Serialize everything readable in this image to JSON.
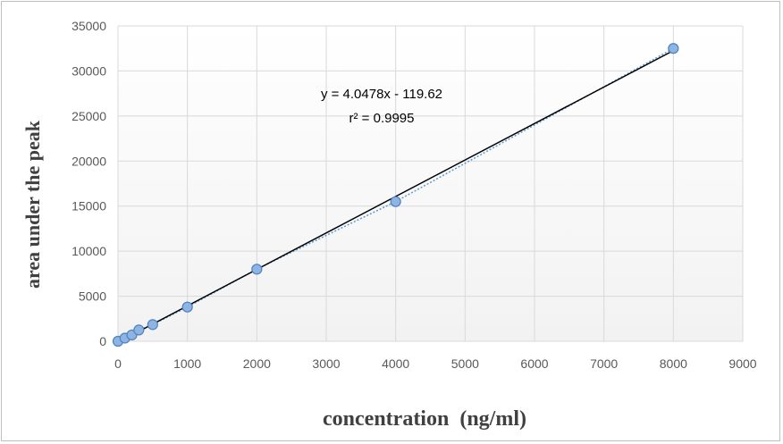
{
  "chart_data": {
    "type": "scatter",
    "title": "",
    "xlabel": "concentration  (ng/ml)",
    "ylabel": "area under the peak",
    "xlim": [
      0,
      9000
    ],
    "ylim": [
      0,
      35000
    ],
    "xticks": [
      "0",
      "1000",
      "2000",
      "3000",
      "4000",
      "5000",
      "6000",
      "7000",
      "8000",
      "9000"
    ],
    "yticks": [
      "0",
      "5000",
      "10000",
      "15000",
      "20000",
      "25000",
      "30000",
      "35000"
    ],
    "grid": true,
    "legend": "none",
    "series": [
      {
        "x": [
          0,
          100,
          200,
          300,
          500,
          1000,
          2000,
          4000,
          8000
        ],
        "y": [
          0,
          350,
          700,
          1250,
          1850,
          3800,
          8000,
          15500,
          32500
        ]
      }
    ],
    "trendline": {
      "slope": 4.0478,
      "intercept": -119.62
    },
    "annotations": {
      "equation": "y = 4.0478x - 119.62",
      "r_squared": "r² = 0.9995"
    },
    "colors": {
      "marker_fill": "#8db4e2",
      "marker_stroke": "#4f81bd",
      "fit_line": "#000000",
      "dotted_line": "#5b9bd5",
      "grid": "#d9d9d9",
      "plot_background_top": "#ffffff",
      "plot_background_bottom": "#f2f2f2"
    }
  }
}
